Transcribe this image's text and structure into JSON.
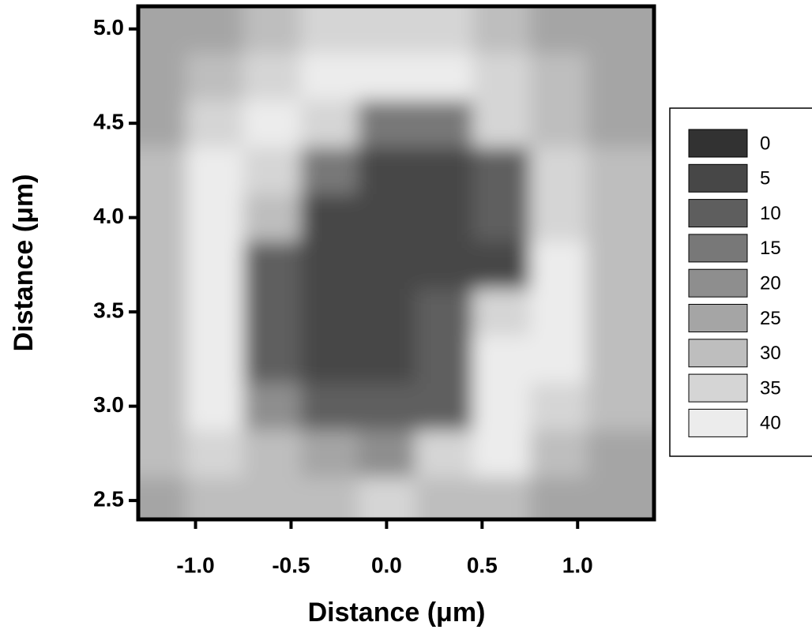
{
  "chart_data": {
    "type": "contour",
    "xlabel": "Distance (μm)",
    "ylabel": "Distance (μm)",
    "x": [
      -1.2,
      -0.9,
      -0.6,
      -0.3,
      0,
      0.3,
      0.6,
      0.9,
      1.2
    ],
    "y": [
      2.5,
      2.75,
      3.0,
      3.25,
      3.5,
      3.75,
      4.0,
      4.25,
      4.5,
      4.75,
      5.0
    ],
    "z": [
      [
        28,
        30,
        32,
        30,
        38,
        30,
        30,
        28,
        28
      ],
      [
        30,
        35,
        30,
        25,
        22,
        38,
        40,
        30,
        28
      ],
      [
        30,
        40,
        20,
        12,
        12,
        10,
        40,
        35,
        30
      ],
      [
        32,
        40,
        10,
        8,
        8,
        12,
        40,
        40,
        30
      ],
      [
        30,
        40,
        10,
        8,
        8,
        10,
        35,
        40,
        30
      ],
      [
        30,
        40,
        12,
        8,
        6,
        8,
        8,
        40,
        32
      ],
      [
        30,
        40,
        30,
        6,
        6,
        8,
        10,
        38,
        30
      ],
      [
        30,
        40,
        38,
        15,
        8,
        8,
        12,
        35,
        30
      ],
      [
        28,
        35,
        40,
        38,
        15,
        15,
        38,
        32,
        28
      ],
      [
        28,
        30,
        35,
        40,
        40,
        40,
        35,
        30,
        28
      ],
      [
        28,
        28,
        30,
        35,
        38,
        35,
        30,
        28,
        26
      ]
    ],
    "xlim": [
      -1.3,
      1.4
    ],
    "ylim": [
      2.4,
      5.12
    ],
    "xticks": [
      {
        "value": -1,
        "label": "-1.0"
      },
      -0.5,
      {
        "value": 0,
        "label": "0.0"
      },
      0.5,
      {
        "value": 1,
        "label": "1.0"
      }
    ],
    "yticks": [
      2.5,
      {
        "value": 3,
        "label": "3.0"
      },
      3.5,
      {
        "value": 4,
        "label": "4.0"
      },
      4.5,
      {
        "value": 5,
        "label": "5.0"
      }
    ],
    "levels": [
      0,
      5,
      10,
      15,
      20,
      25,
      30,
      35,
      40
    ],
    "colors": [
      "#323232",
      "#474747",
      "#5e5e5e",
      "#787878",
      "#8e8e8e",
      "#a5a5a5",
      "#bebebe",
      "#d5d5d5",
      "#ececec"
    ]
  }
}
